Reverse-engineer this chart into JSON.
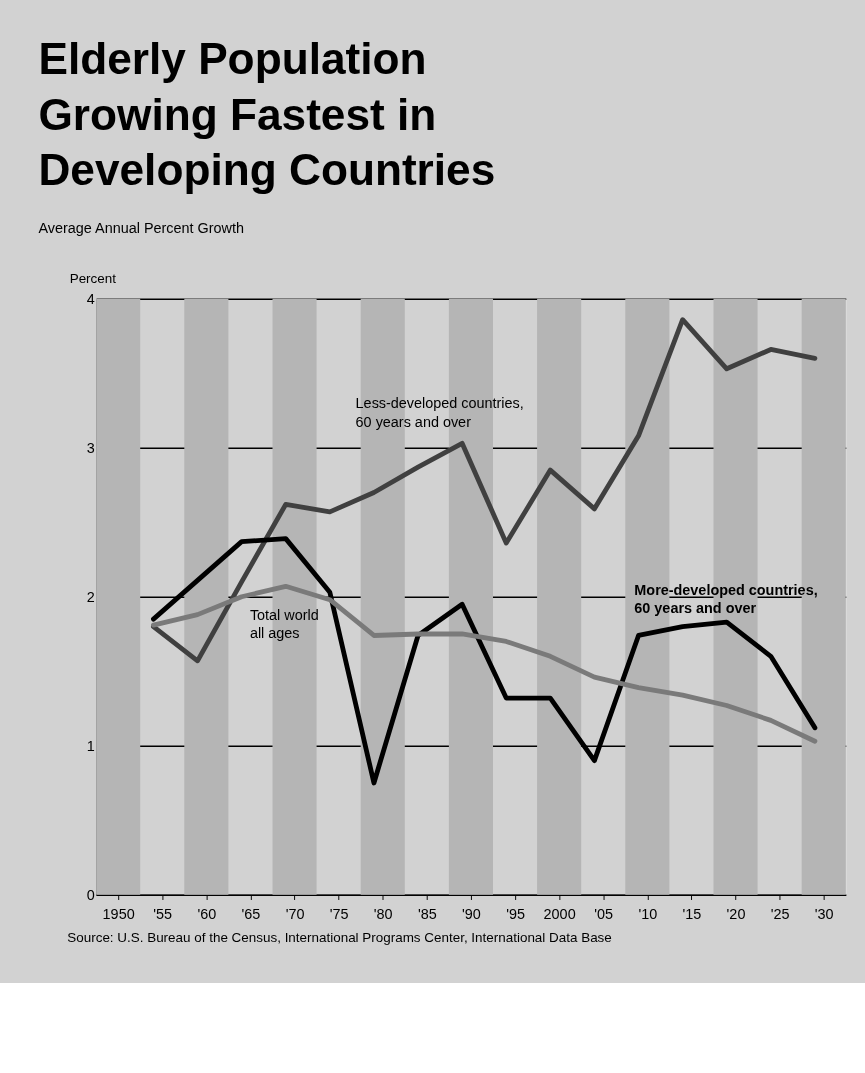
{
  "chart_data": {
    "type": "line",
    "title": "Elderly Population Growing Fastest in Developing Countries",
    "subtitle": "Average Annual Percent Growth",
    "ylabel": "Percent",
    "x": [
      1954,
      1959,
      1964,
      1969,
      1974,
      1979,
      1984,
      1989,
      1994,
      1999,
      2004,
      2009,
      2014,
      2019,
      2024,
      2029
    ],
    "series": [
      {
        "name": "Less-developed countries, 60 years and over",
        "color": "#404040",
        "values": [
          1.8,
          1.57,
          2.1,
          2.62,
          2.57,
          2.7,
          2.87,
          3.03,
          2.36,
          2.85,
          2.59,
          3.08,
          3.86,
          3.53,
          3.66,
          3.6
        ]
      },
      {
        "name": "More-developed countries, 60 years and over",
        "color": "#000000",
        "values": [
          1.85,
          2.11,
          2.37,
          2.39,
          2.03,
          0.75,
          1.74,
          1.95,
          1.32,
          1.32,
          0.9,
          1.74,
          1.8,
          1.83,
          1.6,
          1.12
        ]
      },
      {
        "name": "Total world all ages",
        "color": "#7a7a7a",
        "values": [
          1.81,
          1.88,
          2.0,
          2.07,
          1.98,
          1.74,
          1.75,
          1.75,
          1.7,
          1.6,
          1.46,
          1.39,
          1.34,
          1.27,
          1.17,
          1.03
        ]
      }
    ],
    "xlim": [
      1947.5,
      2032.5
    ],
    "xticks": [
      1950,
      {
        "value": 1955,
        "label": "'55"
      },
      {
        "value": 1960,
        "label": "'60"
      },
      {
        "value": 1965,
        "label": "'65"
      },
      {
        "value": 1970,
        "label": "'70"
      },
      {
        "value": 1975,
        "label": "'75"
      },
      {
        "value": 1980,
        "label": "'80"
      },
      {
        "value": 1985,
        "label": "'85"
      },
      {
        "value": 1990,
        "label": "'90"
      },
      {
        "value": 1995,
        "label": "'95"
      },
      2000,
      {
        "value": 2005,
        "label": "'05"
      },
      {
        "value": 2010,
        "label": "'10"
      },
      {
        "value": 2015,
        "label": "'15"
      },
      {
        "value": 2020,
        "label": "'20"
      },
      {
        "value": 2025,
        "label": "'25"
      },
      {
        "value": 2030,
        "label": "'30"
      }
    ],
    "ylim": [
      0,
      4
    ],
    "yticks": [
      0,
      1,
      2,
      3,
      4
    ],
    "grid": "y",
    "bands": [
      {
        "axis": "x",
        "from": 1947.5,
        "to": 1952.5,
        "color": "#b5b5b5"
      },
      {
        "axis": "x",
        "from": 1957.5,
        "to": 1962.5,
        "color": "#b5b5b5"
      },
      {
        "axis": "x",
        "from": 1967.5,
        "to": 1972.5,
        "color": "#b5b5b5"
      },
      {
        "axis": "x",
        "from": 1977.5,
        "to": 1982.5,
        "color": "#b5b5b5"
      },
      {
        "axis": "x",
        "from": 1987.5,
        "to": 1992.5,
        "color": "#b5b5b5"
      },
      {
        "axis": "x",
        "from": 1997.5,
        "to": 2002.5,
        "color": "#b5b5b5"
      },
      {
        "axis": "x",
        "from": 2007.5,
        "to": 2012.5,
        "color": "#b5b5b5"
      },
      {
        "axis": "x",
        "from": 2017.5,
        "to": 2022.5,
        "color": "#b5b5b5"
      },
      {
        "axis": "x",
        "from": 2027.5,
        "to": 2032.5,
        "color": "#b5b5b5"
      }
    ],
    "annotations": [
      "Source: U.S. Bureau of the Census, International Programs Center, International Data Base"
    ]
  }
}
